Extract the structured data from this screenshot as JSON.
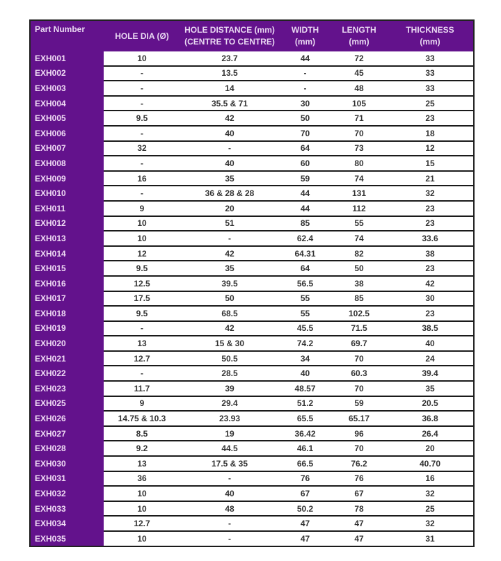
{
  "table": {
    "headers": [
      {
        "line1": "Part Number",
        "line2": ""
      },
      {
        "line1": "HOLE DIA (Ø)",
        "line2": ""
      },
      {
        "line1": "HOLE DISTANCE (mm)",
        "line2": "(CENTRE TO CENTRE)"
      },
      {
        "line1": "WIDTH",
        "line2": "(mm)"
      },
      {
        "line1": "LENGTH",
        "line2": "(mm)"
      },
      {
        "line1": "THICKNESS",
        "line2": "(mm)"
      }
    ],
    "rows": [
      [
        "EXH001",
        "10",
        "23.7",
        "44",
        "72",
        "33"
      ],
      [
        "EXH002",
        "-",
        "13.5",
        "-",
        "45",
        "33"
      ],
      [
        "EXH003",
        "-",
        "14",
        "-",
        "48",
        "33"
      ],
      [
        "EXH004",
        "-",
        "35.5 & 71",
        "30",
        "105",
        "25"
      ],
      [
        "EXH005",
        "9.5",
        "42",
        "50",
        "71",
        "23"
      ],
      [
        "EXH006",
        "-",
        "40",
        "70",
        "70",
        "18"
      ],
      [
        "EXH007",
        "32",
        "-",
        "64",
        "73",
        "12"
      ],
      [
        "EXH008",
        "-",
        "40",
        "60",
        "80",
        "15"
      ],
      [
        "EXH009",
        "16",
        "35",
        "59",
        "74",
        "21"
      ],
      [
        "EXH010",
        "-",
        "36 & 28 & 28",
        "44",
        "131",
        "32"
      ],
      [
        "EXH011",
        "9",
        "20",
        "44",
        "112",
        "23"
      ],
      [
        "EXH012",
        "10",
        "51",
        "85",
        "55",
        "23"
      ],
      [
        "EXH013",
        "10",
        "-",
        "62.4",
        "74",
        "33.6"
      ],
      [
        "EXH014",
        "12",
        "42",
        "64.31",
        "82",
        "38"
      ],
      [
        "EXH015",
        "9.5",
        "35",
        "64",
        "50",
        "23"
      ],
      [
        "EXH016",
        "12.5",
        "39.5",
        "56.5",
        "38",
        "42"
      ],
      [
        "EXH017",
        "17.5",
        "50",
        "55",
        "85",
        "30"
      ],
      [
        "EXH018",
        "9.5",
        "68.5",
        "55",
        "102.5",
        "23"
      ],
      [
        "EXH019",
        "-",
        "42",
        "45.5",
        "71.5",
        "38.5"
      ],
      [
        "EXH020",
        "13",
        "15 & 30",
        "74.2",
        "69.7",
        "40"
      ],
      [
        "EXH021",
        "12.7",
        "50.5",
        "34",
        "70",
        "24"
      ],
      [
        "EXH022",
        "-",
        "28.5",
        "40",
        "60.3",
        "39.4"
      ],
      [
        "EXH023",
        "11.7",
        "39",
        "48.57",
        "70",
        "35"
      ],
      [
        "EXH025",
        "9",
        "29.4",
        "51.2",
        "59",
        "20.5"
      ],
      [
        "EXH026",
        "14.75 & 10.3",
        "23.93",
        "65.5",
        "65.17",
        "36.8"
      ],
      [
        "EXH027",
        "8.5",
        "19",
        "36.42",
        "96",
        "26.4"
      ],
      [
        "EXH028",
        "9.2",
        "44.5",
        "46.1",
        "70",
        "20"
      ],
      [
        "EXH030",
        "13",
        "17.5 & 35",
        "66.5",
        "76.2",
        "40.70"
      ],
      [
        "EXH031",
        "36",
        "-",
        "76",
        "76",
        "16"
      ],
      [
        "EXH032",
        "10",
        "40",
        "67",
        "67",
        "32"
      ],
      [
        "EXH033",
        "10",
        "48",
        "50.2",
        "78",
        "25"
      ],
      [
        "EXH034",
        "12.7",
        "-",
        "47",
        "47",
        "32"
      ],
      [
        "EXH035",
        "10",
        "-",
        "47",
        "47",
        "31"
      ]
    ]
  },
  "colors": {
    "header_purple": "#63128c"
  }
}
